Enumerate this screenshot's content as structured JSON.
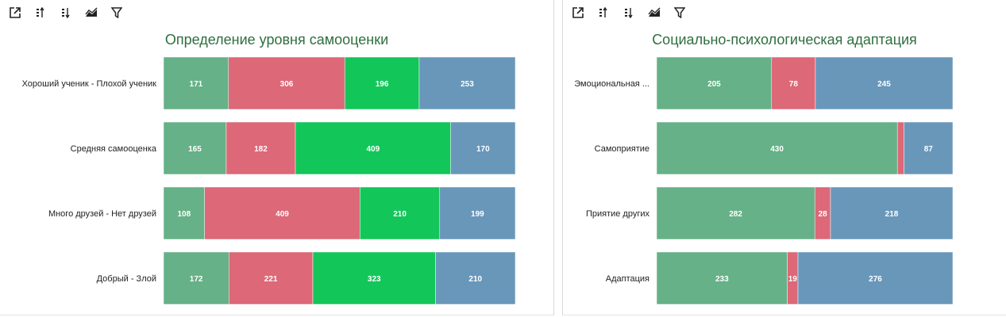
{
  "toolbar_icons": [
    "external-link-icon",
    "sort-asc-icon",
    "sort-desc-icon",
    "area-chart-icon",
    "filter-icon"
  ],
  "chart_data": [
    {
      "type": "bar",
      "orientation": "horizontal",
      "stacked": true,
      "title": "Определение уровня самооценки",
      "categories": [
        "Хороший ученик - Плохой ученик",
        "Средняя самооценка",
        "Много друзей - Нет друзей",
        "Добрый - Злой"
      ],
      "series": [
        {
          "values": [
            171,
            165,
            108,
            172
          ],
          "color": "#66b187"
        },
        {
          "values": [
            306,
            182,
            409,
            221
          ],
          "color": "#dc6878"
        },
        {
          "values": [
            196,
            409,
            210,
            323
          ],
          "color": "#13c65a"
        },
        {
          "values": [
            253,
            170,
            199,
            210
          ],
          "color": "#6897ba"
        }
      ],
      "legend": "none",
      "grid": false
    },
    {
      "type": "bar",
      "orientation": "horizontal",
      "stacked": true,
      "title": "Социально-психологическая адаптация",
      "categories": [
        "Эмоциональная ...",
        "Самоприятие",
        "Приятие других",
        "Адаптация"
      ],
      "series": [
        {
          "values": [
            205,
            430,
            282,
            233
          ],
          "color": "#66b187"
        },
        {
          "values": [
            78,
            12,
            28,
            19
          ],
          "color": "#dc6878"
        },
        {
          "values": [
            245,
            87,
            218,
            276
          ],
          "color": "#6897ba"
        }
      ],
      "value_labels_hidden": [
        [
          false,
          false,
          false,
          false
        ],
        [
          false,
          true,
          false,
          false
        ],
        [
          false,
          false,
          false,
          false
        ]
      ],
      "legend": "none",
      "grid": false
    }
  ]
}
